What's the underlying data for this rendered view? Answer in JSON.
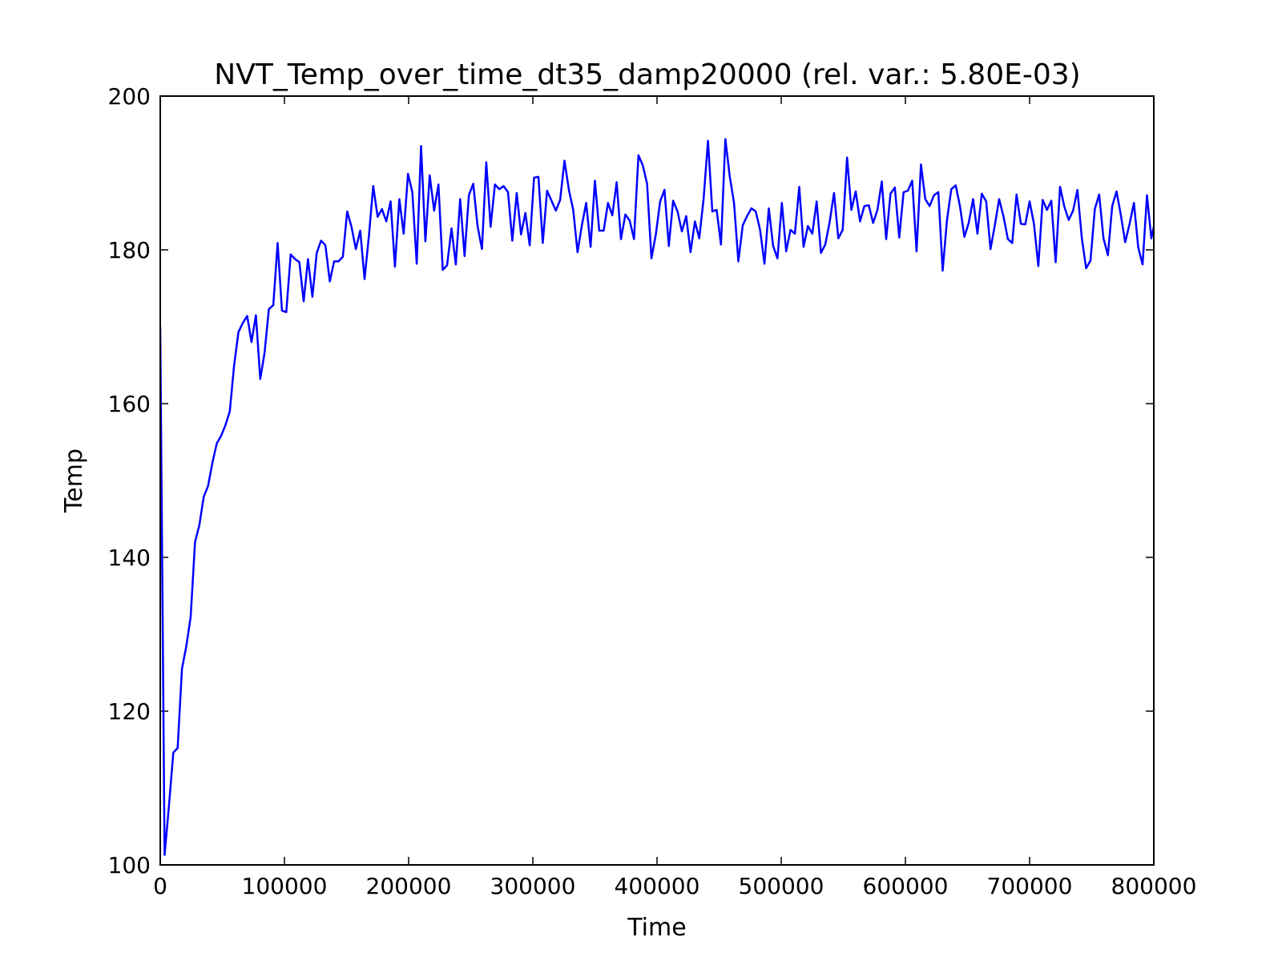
{
  "chart_data": {
    "type": "line",
    "title": "NVT_Temp_over_time_dt35_damp20000 (rel. var.: 5.80E-03)",
    "xlabel": "Time",
    "ylabel": "Temp",
    "xlim": [
      0,
      800000
    ],
    "ylim": [
      100,
      200
    ],
    "xticks": [
      0,
      100000,
      200000,
      300000,
      400000,
      500000,
      600000,
      700000,
      800000
    ],
    "yticks": [
      100,
      120,
      140,
      160,
      180,
      200
    ],
    "grid": false,
    "legend": "none",
    "line_color": "#0000ff",
    "series": [
      {
        "x": [
          0,
          3500,
          7000,
          10500,
          14000,
          17500,
          21000,
          24500,
          28000,
          31500,
          35000,
          38500,
          42000,
          45500,
          49000,
          52500,
          56000,
          59500,
          63000,
          66500,
          70000,
          73500,
          77000,
          80500,
          84000,
          87500,
          91000,
          94500,
          98000,
          101500,
          105000,
          108500,
          112000,
          115500,
          119000,
          122500,
          126000,
          129500,
          133000,
          136500,
          140000,
          143500,
          147000,
          150500,
          154000,
          157500,
          161000,
          164500,
          168000,
          171500,
          175000,
          178500,
          182000,
          185500,
          189000,
          192500,
          196000,
          199500,
          203000,
          206500,
          210000,
          213500,
          217000,
          220500,
          224000,
          227500,
          231000,
          234500,
          238000,
          241500,
          245000,
          248500,
          252000,
          255500,
          259000,
          262500,
          266000,
          269500,
          273000,
          276500,
          280000,
          283500,
          287000,
          290500,
          294000,
          297500,
          301000,
          304500,
          308000,
          311500,
          315000,
          318500,
          322000,
          325500,
          329000,
          332500,
          336000,
          339500,
          343000,
          346500,
          350000,
          353500,
          357000,
          360500,
          364000,
          367500,
          371000,
          374500,
          378000,
          381500,
          385000,
          388500,
          392000,
          395500,
          399000,
          402500,
          406000,
          409500,
          413000,
          416500,
          420000,
          423500,
          427000,
          430500,
          434000,
          437500,
          441000,
          444500,
          448000,
          451500,
          455000,
          458500,
          462000,
          465500,
          469000,
          472500,
          476000,
          479500,
          483000,
          486500,
          490000,
          493500,
          497000,
          500500,
          504000,
          507500,
          511000,
          514500,
          518000,
          521500,
          525000,
          528500,
          532000,
          535500,
          539000,
          542500,
          546000,
          549500,
          553000,
          556500,
          560000,
          563500,
          567000,
          570500,
          574000,
          577500,
          581000,
          584500,
          588000,
          591500,
          595000,
          598500,
          602000,
          605500,
          609000,
          612500,
          616000,
          619500,
          623000,
          626500,
          630000,
          633500,
          637000,
          640500,
          644000,
          647500,
          651000,
          654500,
          658000,
          661500,
          665000,
          668500,
          672000,
          675500,
          679000,
          682500,
          686000,
          689500,
          693000,
          696500,
          700000,
          703500,
          707000,
          710500,
          714000,
          717500,
          721000,
          724500,
          728000,
          731500,
          735000,
          738500,
          742000,
          745500,
          749000,
          752500,
          756000,
          759500,
          763000,
          766500,
          770000,
          773500,
          777000,
          780500,
          784000,
          787500,
          791000,
          794500,
          798000,
          800000
        ],
        "values": [
          170.0,
          101.3,
          107.6,
          114.6,
          115.2,
          125.5,
          128.5,
          132.3,
          142.0,
          144.2,
          147.9,
          149.3,
          152.3,
          154.8,
          155.8,
          157.2,
          159.0,
          165.0,
          169.3,
          170.5,
          171.4,
          168.0,
          171.5,
          163.2,
          166.6,
          172.3,
          172.8,
          180.9,
          172.1,
          171.9,
          179.4,
          178.8,
          178.4,
          173.3,
          178.8,
          173.9,
          179.6,
          181.2,
          180.6,
          175.9,
          178.5,
          178.5,
          179.1,
          185.0,
          183.0,
          180.1,
          182.5,
          176.2,
          181.8,
          188.3,
          184.3,
          185.3,
          183.7,
          186.3,
          177.8,
          186.6,
          182.1,
          189.9,
          187.5,
          178.2,
          193.5,
          181.1,
          189.7,
          185.1,
          188.5,
          177.4,
          178.0,
          182.8,
          178.1,
          186.6,
          179.2,
          187.1,
          188.6,
          183.1,
          180.1,
          191.4,
          183.0,
          188.5,
          187.9,
          188.3,
          187.5,
          181.2,
          187.4,
          182.0,
          184.8,
          180.6,
          189.4,
          189.5,
          180.9,
          187.7,
          186.4,
          185.1,
          186.5,
          191.6,
          187.8,
          185.2,
          179.7,
          183.2,
          186.1,
          180.4,
          189.0,
          182.5,
          182.5,
          186.1,
          184.5,
          188.8,
          181.4,
          184.6,
          183.8,
          181.4,
          192.3,
          191.0,
          188.6,
          178.9,
          182.0,
          186.3,
          187.8,
          180.5,
          186.4,
          185.0,
          182.4,
          184.4,
          179.7,
          183.7,
          181.5,
          186.6,
          194.2,
          185.0,
          185.2,
          180.7,
          194.4,
          189.6,
          186.1,
          178.5,
          183.2,
          184.4,
          185.4,
          185.0,
          182.6,
          178.2,
          185.4,
          180.5,
          178.9,
          186.1,
          179.8,
          182.6,
          182.1,
          188.2,
          180.4,
          183.1,
          182.1,
          186.3,
          179.6,
          180.7,
          183.6,
          187.4,
          181.5,
          182.6,
          192.0,
          185.2,
          187.6,
          183.7,
          185.7,
          185.8,
          183.5,
          185.2,
          188.9,
          181.4,
          187.3,
          188.1,
          181.6,
          187.5,
          187.7,
          189.0,
          179.8,
          191.1,
          186.6,
          185.7,
          187.1,
          187.5,
          177.3,
          183.9,
          187.9,
          188.4,
          185.6,
          181.7,
          183.5,
          186.6,
          182.1,
          187.3,
          186.3,
          180.1,
          183.2,
          186.6,
          184.3,
          181.4,
          180.9,
          187.2,
          183.4,
          183.3,
          186.3,
          183.4,
          177.9,
          186.5,
          185.2,
          186.4,
          178.4,
          188.2,
          185.6,
          183.9,
          185.1,
          187.8,
          181.6,
          177.6,
          178.6,
          185.3,
          187.2,
          181.5,
          179.3,
          185.7,
          187.6,
          184.5,
          181.0,
          183.4,
          186.1,
          180.3,
          178.1,
          187.1,
          181.5,
          183.0
        ]
      }
    ]
  }
}
